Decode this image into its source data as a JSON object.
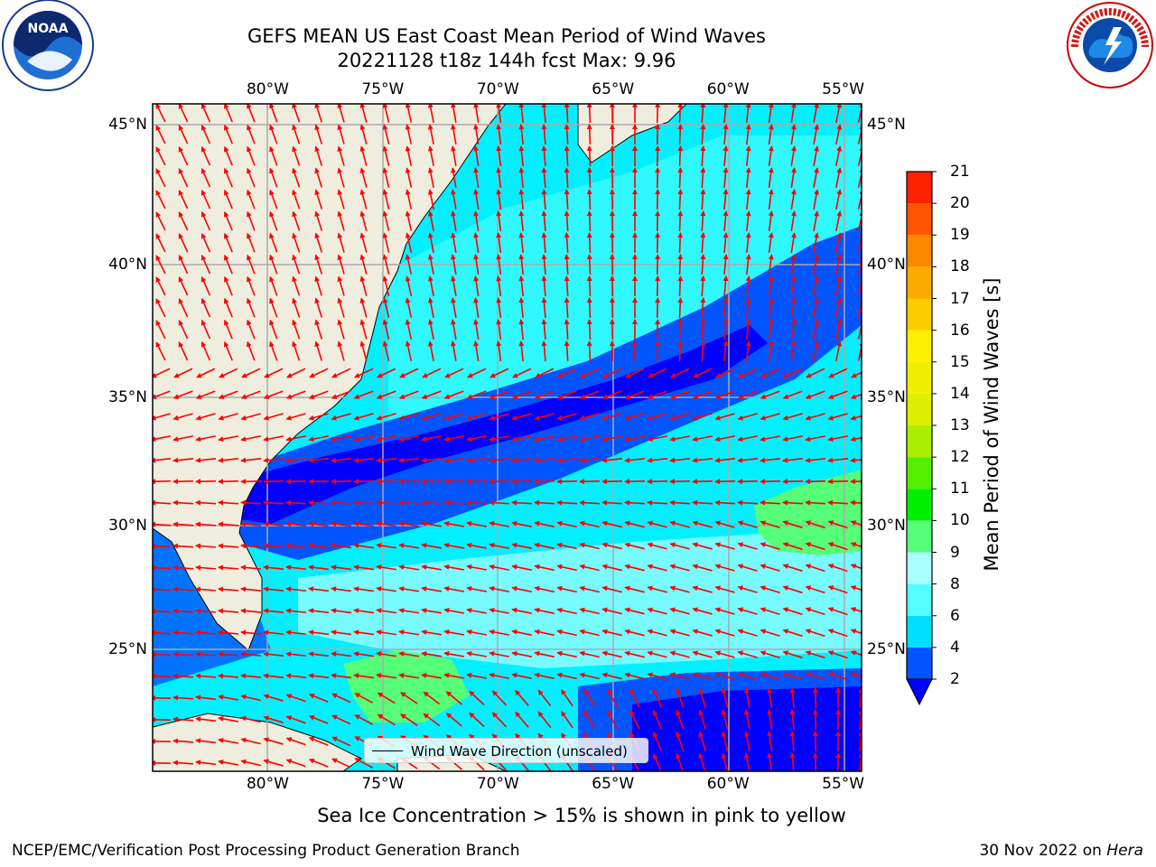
{
  "header": {
    "title": "GEFS MEAN US East Coast Mean Period of Wind Waves",
    "subtitle": "20221128 t18z 144h fcst   Max: 9.96"
  },
  "map": {
    "lon_ticks": [
      "80°W",
      "75°W",
      "70°W",
      "65°W",
      "60°W",
      "55°W"
    ],
    "lat_ticks": [
      "45°N",
      "40°N",
      "35°N",
      "30°N",
      "25°N"
    ],
    "lon_values": [
      -80,
      -75,
      -70,
      -65,
      -60,
      -55
    ],
    "lat_values": [
      45,
      40,
      35,
      30,
      25
    ],
    "lon_range": [
      -85,
      -54.2
    ],
    "lat_range": [
      20.5,
      46
    ],
    "legend": "Wind Wave Direction (unscaled)",
    "colors": {
      "land": "#efedde",
      "arrow": "#ff0000",
      "grid": "#aaaaaa",
      "border": "#000000"
    }
  },
  "colorbar": {
    "label": "Mean Period of Wind Waves [s]",
    "ticks": [
      "2",
      "4",
      "6",
      "8",
      "9",
      "10",
      "11",
      "12",
      "13",
      "14",
      "15",
      "16",
      "17",
      "18",
      "19",
      "20",
      "21"
    ],
    "colors": [
      "#0055ff",
      "#00ddff",
      "#55ffff",
      "#aaffff",
      "#55ff77",
      "#00ee00",
      "#55ee00",
      "#aaee00",
      "#ddee00",
      "#eeee00",
      "#ffee00",
      "#ffcc00",
      "#ffaa00",
      "#ff8800",
      "#ff5500",
      "#ff2200"
    ],
    "under_color": "#0000ff"
  },
  "caption": "Sea Ice Concentration > 15% is shown in pink to yellow",
  "footer": {
    "left": "NCEP/EMC/Verification Post Processing Product Generation Branch",
    "right_date": "30 Nov 2022 on",
    "right_host": "Hera"
  },
  "logos": {
    "left_text": "NOAA",
    "right_text": "NATIONAL WEATHER SERVICE"
  }
}
